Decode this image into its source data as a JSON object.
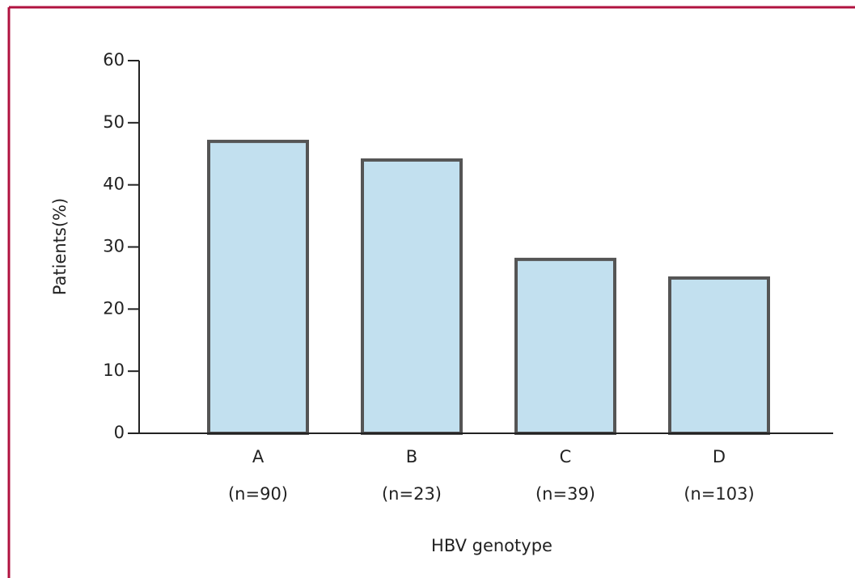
{
  "chart_data": {
    "type": "bar",
    "categories": [
      "A",
      "B",
      "C",
      "D"
    ],
    "category_notes": [
      "(n=90)",
      "(n=23)",
      "(n=39)",
      "(n=103)"
    ],
    "values": [
      47,
      44,
      28,
      25
    ],
    "color": "#c2e0ef",
    "y_label": "Patients(%)",
    "x_label": "HBV genotype",
    "ylim": [
      0,
      60
    ],
    "yticks": [
      0,
      10,
      20,
      30,
      40,
      50,
      60
    ],
    "grid": false
  }
}
